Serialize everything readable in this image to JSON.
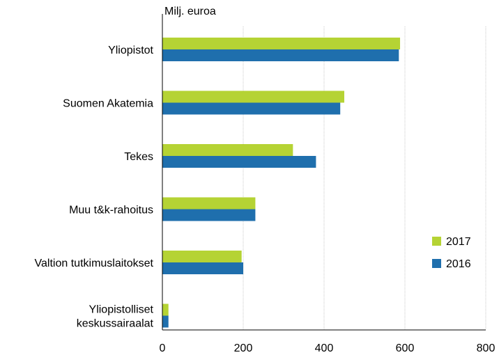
{
  "chart_data": {
    "type": "bar",
    "orientation": "horizontal",
    "unit_label": "Milj. euroa",
    "categories": [
      [
        "Yliopistot"
      ],
      [
        "Suomen Akatemia"
      ],
      [
        "Tekes"
      ],
      [
        "Muu t&k-rahoitus"
      ],
      [
        "Valtion tutkimuslaitokset"
      ],
      [
        "Yliopistolliset",
        "keskussairaalat"
      ]
    ],
    "series": [
      {
        "name": "2017",
        "color": "#b5d334",
        "values": [
          588,
          450,
          323,
          230,
          196,
          15
        ]
      },
      {
        "name": "2016",
        "color": "#1f6fad",
        "values": [
          585,
          440,
          380,
          230,
          200,
          15
        ]
      }
    ],
    "xlim": [
      0,
      800
    ],
    "xticks": [
      "0",
      "200",
      "400",
      "600",
      "800"
    ],
    "grid": "vertical",
    "legend_position": "right"
  }
}
